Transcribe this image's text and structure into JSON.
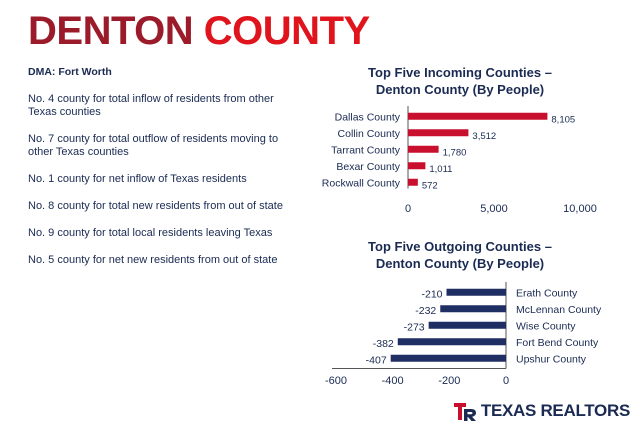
{
  "header": {
    "title_part1": "DENTON",
    "title_part2": "COUNTY"
  },
  "dma": "DMA: Fort Worth",
  "stats": [
    "No. 4 county for total inflow of residents from other Texas counties",
    "No. 7 county for total outflow of residents moving to other Texas counties",
    "No. 1 county for net inflow of Texas residents",
    "No. 8 county for total new residents from out of state",
    "No. 9 county for total local residents leaving Texas",
    "No. 5 county for net new residents from out of state"
  ],
  "incoming": {
    "title_line1": "Top Five Incoming Counties –",
    "title_line2": "Denton County (By People)"
  },
  "outgoing": {
    "title_line1": "Top Five Outgoing Counties –",
    "title_line2": "Denton County (By People)"
  },
  "logo": {
    "text": "TEXAS REALTORS",
    "mark": "TR"
  },
  "colors": {
    "brand_dark_red": "#9b1b2a",
    "brand_red": "#e0141c",
    "navy": "#1a2a52",
    "bar_red": "#c8102e",
    "bar_navy": "#1f2f63"
  },
  "chart_data": [
    {
      "type": "bar",
      "orientation": "horizontal",
      "title": "Top Five Incoming Counties – Denton County (By People)",
      "categories": [
        "Dallas County",
        "Collin County",
        "Tarrant County",
        "Bexar County",
        "Rockwall County"
      ],
      "values": [
        8105,
        3512,
        1780,
        1011,
        572
      ],
      "value_labels": [
        "8,105",
        "3,512",
        "1,780",
        "1,011",
        "572"
      ],
      "xlim": [
        0,
        10000
      ],
      "xticks": [
        0,
        5000,
        10000
      ],
      "xtick_labels": [
        "0",
        "5,000",
        "10,000"
      ],
      "grid": false,
      "legend": "none"
    },
    {
      "type": "bar",
      "orientation": "horizontal",
      "title": "Top Five Outgoing Counties – Denton County (By People)",
      "categories": [
        "Erath County",
        "McLennan County",
        "Wise County",
        "Fort Bend County",
        "Upshur County"
      ],
      "values": [
        -210,
        -232,
        -273,
        -382,
        -407
      ],
      "value_labels": [
        "-210",
        "-232",
        "-273",
        "-382",
        "-407"
      ],
      "xlim": [
        -600,
        0
      ],
      "xticks": [
        -600,
        -400,
        -200,
        0
      ],
      "xtick_labels": [
        "-600",
        "-400",
        "-200",
        "0"
      ],
      "grid": false,
      "legend": "none"
    }
  ]
}
